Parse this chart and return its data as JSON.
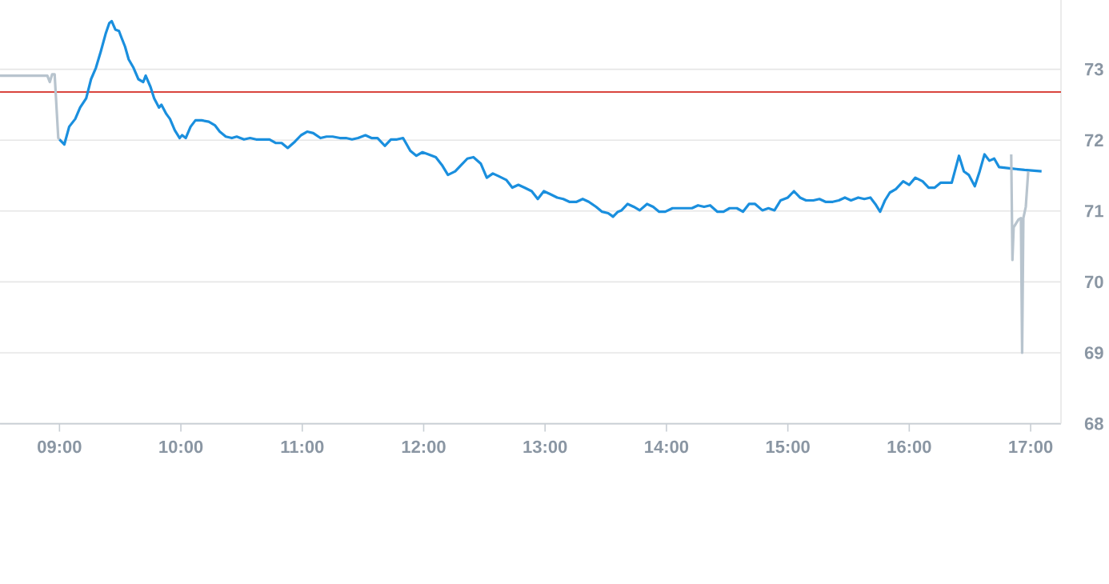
{
  "chart_data": {
    "type": "line",
    "xlim": [
      8.51,
      17.25
    ],
    "ylim": [
      68,
      74
    ],
    "xticks": [
      {
        "value": 9,
        "label": "09:00"
      },
      {
        "value": 10,
        "label": "10:00"
      },
      {
        "value": 11,
        "label": "11:00"
      },
      {
        "value": 12,
        "label": "12:00"
      },
      {
        "value": 13,
        "label": "13:00"
      },
      {
        "value": 14,
        "label": "14:00"
      },
      {
        "value": 15,
        "label": "15:00"
      },
      {
        "value": 16,
        "label": "16:00"
      },
      {
        "value": 17,
        "label": "17:00"
      }
    ],
    "yticks": [
      68,
      69,
      70,
      71,
      72,
      73
    ],
    "grid": "y",
    "marker": "none",
    "line_style": "solid",
    "ref_lines": [
      {
        "axis": "y",
        "value": 72.68,
        "color": "#d9453d"
      }
    ],
    "series": [
      {
        "color": "#b8c4ce",
        "x": [
          8.51,
          8.9,
          8.92,
          8.94,
          8.96,
          8.99,
          9.0
        ],
        "values": [
          72.91,
          72.91,
          72.82,
          72.93,
          72.93,
          72.03,
          72.01
        ]
      },
      {
        "color": "#1a8fde",
        "x": [
          9.0,
          9.04,
          9.08,
          9.13,
          9.17,
          9.22,
          9.26,
          9.3,
          9.34,
          9.38,
          9.41,
          9.43,
          9.46,
          9.49,
          9.51,
          9.54,
          9.57,
          9.61,
          9.65,
          9.69,
          9.71,
          9.75,
          9.78,
          9.82,
          9.84,
          9.88,
          9.91,
          9.95,
          9.99,
          10.01,
          10.04,
          10.08,
          10.12,
          10.17,
          10.23,
          10.28,
          10.32,
          10.37,
          10.42,
          10.46,
          10.52,
          10.57,
          10.62,
          10.67,
          10.73,
          10.78,
          10.83,
          10.88,
          10.94,
          10.99,
          11.04,
          11.09,
          11.15,
          11.2,
          11.25,
          11.31,
          11.36,
          11.41,
          11.46,
          11.52,
          11.57,
          11.62,
          11.68,
          11.73,
          11.78,
          11.83,
          11.89,
          11.94,
          11.99,
          12.04,
          12.1,
          12.15,
          12.2,
          12.26,
          12.31,
          12.36,
          12.41,
          12.47,
          12.52,
          12.57,
          12.62,
          12.68,
          12.73,
          12.78,
          12.83,
          12.89,
          12.94,
          12.99,
          13.04,
          13.1,
          13.15,
          13.2,
          13.26,
          13.31,
          13.36,
          13.42,
          13.47,
          13.52,
          13.56,
          13.6,
          13.63,
          13.68,
          13.73,
          13.78,
          13.84,
          13.89,
          13.94,
          13.99,
          14.05,
          14.1,
          14.15,
          14.21,
          14.26,
          14.31,
          14.36,
          14.42,
          14.47,
          14.52,
          14.58,
          14.63,
          14.68,
          14.73,
          14.79,
          14.84,
          14.89,
          14.94,
          15.0,
          15.05,
          15.1,
          15.15,
          15.21,
          15.26,
          15.31,
          15.37,
          15.42,
          15.47,
          15.52,
          15.58,
          15.63,
          15.68,
          15.72,
          15.76,
          15.8,
          15.84,
          15.89,
          15.95,
          16.0,
          16.05,
          16.11,
          16.16,
          16.21,
          16.26,
          16.32,
          16.35,
          16.41,
          16.45,
          16.49,
          16.54,
          16.58,
          16.62,
          16.66,
          16.7,
          16.74,
          16.84,
          16.95,
          17.09
        ],
        "values": [
          72.01,
          71.94,
          72.19,
          72.3,
          72.46,
          72.59,
          72.86,
          73.02,
          73.25,
          73.5,
          73.65,
          73.68,
          73.56,
          73.54,
          73.45,
          73.32,
          73.14,
          73.02,
          72.86,
          72.82,
          72.91,
          72.75,
          72.59,
          72.46,
          72.5,
          72.37,
          72.3,
          72.14,
          72.03,
          72.07,
          72.03,
          72.19,
          72.28,
          72.28,
          72.26,
          72.21,
          72.12,
          72.05,
          72.03,
          72.05,
          72.01,
          72.03,
          72.01,
          72.01,
          72.01,
          71.96,
          71.96,
          71.89,
          71.98,
          72.07,
          72.12,
          72.1,
          72.03,
          72.05,
          72.05,
          72.03,
          72.03,
          72.01,
          72.03,
          72.07,
          72.03,
          72.03,
          71.92,
          72.01,
          72.01,
          72.03,
          71.85,
          71.78,
          71.83,
          71.8,
          71.76,
          71.65,
          71.51,
          71.56,
          71.65,
          71.74,
          71.76,
          71.67,
          71.47,
          71.53,
          71.49,
          71.44,
          71.33,
          71.37,
          71.33,
          71.28,
          71.17,
          71.28,
          71.24,
          71.19,
          71.17,
          71.13,
          71.13,
          71.17,
          71.13,
          71.06,
          70.99,
          70.97,
          70.92,
          70.99,
          71.01,
          71.1,
          71.06,
          71.01,
          71.1,
          71.06,
          70.99,
          70.99,
          71.04,
          71.04,
          71.04,
          71.04,
          71.08,
          71.06,
          71.08,
          70.99,
          70.99,
          71.04,
          71.04,
          70.99,
          71.1,
          71.1,
          71.01,
          71.04,
          71.01,
          71.15,
          71.19,
          71.28,
          71.19,
          71.15,
          71.15,
          71.17,
          71.13,
          71.13,
          71.15,
          71.19,
          71.15,
          71.19,
          71.17,
          71.19,
          71.1,
          70.99,
          71.15,
          71.26,
          71.31,
          71.42,
          71.37,
          71.47,
          71.42,
          71.33,
          71.33,
          71.4,
          71.4,
          71.4,
          71.78,
          71.56,
          71.51,
          71.35,
          71.56,
          71.8,
          71.71,
          71.74,
          71.62,
          71.6,
          71.58,
          71.56
        ]
      },
      {
        "color": "#b8c4ce",
        "x": [
          16.84,
          16.85,
          16.86,
          16.9,
          16.92,
          16.93,
          16.94,
          16.96,
          16.98
        ],
        "values": [
          71.8,
          70.31,
          70.77,
          70.88,
          70.9,
          69.0,
          70.9,
          71.06,
          71.56
        ]
      }
    ]
  }
}
